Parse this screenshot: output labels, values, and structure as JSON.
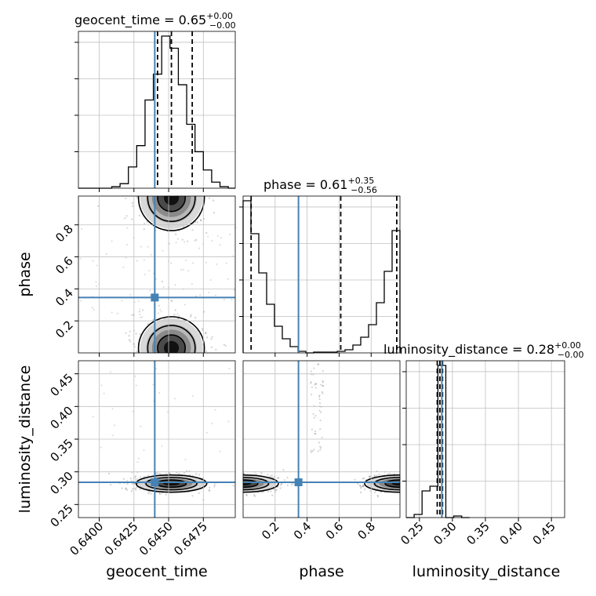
{
  "chart_data": {
    "type": "corner",
    "parameters": [
      "geocent_time",
      "phase",
      "luminosity_distance"
    ],
    "injection": {
      "geocent_time": 0.644,
      "phase": 0.346,
      "luminosity_distance": 0.284
    },
    "colors": {
      "truth": "#4682b4",
      "hist": "#000000",
      "grid": "#c0c0c0",
      "contour": "#000000"
    },
    "titles": [
      {
        "param": "geocent_time",
        "text": "geocent_time = 0.65",
        "plus": "+0.00",
        "minus": "−0.00"
      },
      {
        "param": "phase",
        "text": "phase = 0.61",
        "plus": "+0.35",
        "minus": "−0.56"
      },
      {
        "param": "luminosity_distance",
        "text": "luminosity_distance = 0.28",
        "plus": "+0.00",
        "minus": "−0.00"
      }
    ],
    "axes": {
      "geocent_time": {
        "range": [
          0.6385,
          0.6498
        ],
        "ticks": [
          0.64,
          0.6425,
          0.645,
          0.6475
        ],
        "tick_labels": [
          "0.6400",
          "0.6425",
          "0.6450",
          "0.6475"
        ],
        "label": "geocent_time"
      },
      "phase": {
        "range": [
          0.0,
          0.98
        ],
        "ticks": [
          0.2,
          0.4,
          0.6,
          0.8
        ],
        "tick_labels": [
          "0.2",
          "0.4",
          "0.6",
          "0.8"
        ],
        "label": "phase"
      },
      "luminosity_distance": {
        "range": [
          0.23,
          0.47
        ],
        "ticks": [
          0.25,
          0.3,
          0.35,
          0.4,
          0.45
        ],
        "tick_labels": [
          "0.25",
          "0.30",
          "0.35",
          "0.40",
          "0.45"
        ],
        "label": "luminosity_distance"
      }
    },
    "histograms": [
      {
        "param": "geocent_time",
        "bins": [
          0.6385,
          0.6391,
          0.6397,
          0.6403,
          0.6409,
          0.6415,
          0.6421,
          0.6427,
          0.6433,
          0.6439,
          0.6445,
          0.6451,
          0.6457,
          0.6463,
          0.6469,
          0.6475,
          0.6481,
          0.6487,
          0.6493,
          0.6498
        ],
        "counts": [
          0,
          0,
          0,
          0,
          0.01,
          0.03,
          0.14,
          0.28,
          0.58,
          0.75,
          1.0,
          0.92,
          0.68,
          0.42,
          0.24,
          0.12,
          0.04,
          0.01,
          0
        ],
        "quantiles": [
          0.6442,
          0.6452,
          0.6467
        ]
      },
      {
        "param": "phase",
        "bins": [
          0.0,
          0.049,
          0.098,
          0.147,
          0.196,
          0.245,
          0.294,
          0.343,
          0.392,
          0.441,
          0.49,
          0.539,
          0.588,
          0.637,
          0.686,
          0.735,
          0.784,
          0.833,
          0.882,
          0.931,
          0.98
        ],
        "counts": [
          0.97,
          0.76,
          0.51,
          0.31,
          0.17,
          0.09,
          0.04,
          0.01,
          0.0,
          0.005,
          0.005,
          0.005,
          0.01,
          0.02,
          0.05,
          0.1,
          0.18,
          0.32,
          0.52,
          0.78
        ],
        "quantiles": [
          0.05,
          0.61,
          0.96
        ]
      },
      {
        "param": "luminosity_distance",
        "bins": [
          0.23,
          0.242,
          0.254,
          0.266,
          0.278,
          0.29,
          0.302,
          0.314,
          0.326
        ],
        "counts": [
          0.0,
          0.02,
          0.17,
          0.2,
          0.97,
          0.0,
          0.01,
          0.0
        ],
        "quantiles": [
          0.277,
          0.281,
          0.285
        ]
      }
    ]
  }
}
